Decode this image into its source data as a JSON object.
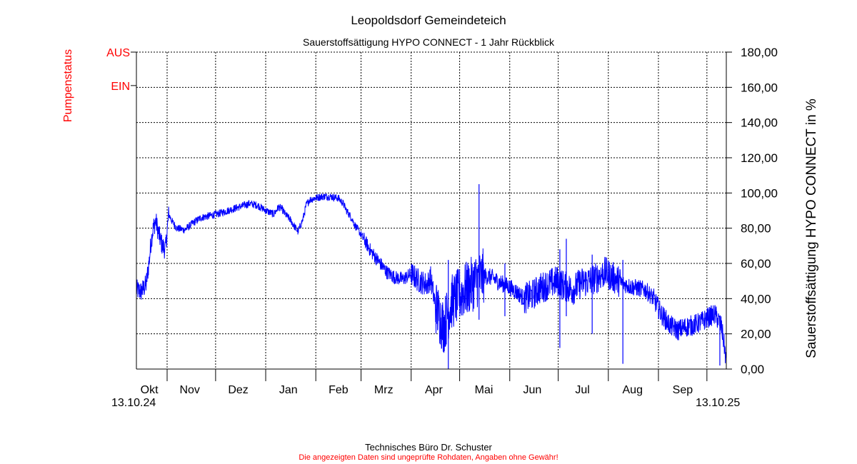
{
  "chart_data": {
    "type": "line",
    "title": "Leopoldsdorf Gemeindeteich",
    "subtitle": "Sauerstoffsättigung  HYPO CONNECT - 1 Jahr Rückblick",
    "ylabel": "Sauerstoffsättigung  HYPO CONNECT in %",
    "ylim": [
      0,
      180
    ],
    "yticks": [
      "0,00",
      "20,00",
      "40,00",
      "60,00",
      "80,00",
      "100,00",
      "120,00",
      "140,00",
      "160,00",
      "180,00"
    ],
    "xlim": [
      0,
      365
    ],
    "month_labels": [
      {
        "label": "Okt",
        "day": 8
      },
      {
        "label": "Nov",
        "day": 33
      },
      {
        "label": "Dez",
        "day": 63
      },
      {
        "label": "Jan",
        "day": 94
      },
      {
        "label": "Feb",
        "day": 125
      },
      {
        "label": "Mrz",
        "day": 153
      },
      {
        "label": "Apr",
        "day": 184
      },
      {
        "label": "Mai",
        "day": 215
      },
      {
        "label": "Jun",
        "day": 245
      },
      {
        "label": "Jul",
        "day": 276
      },
      {
        "label": "Aug",
        "day": 307
      },
      {
        "label": "Sep",
        "day": 338
      }
    ],
    "month_gridlines": [
      19,
      49,
      80,
      111,
      139,
      170,
      200,
      231,
      261,
      292,
      323,
      353
    ],
    "date_start": "13.10.24",
    "date_end": "13.10.25",
    "grid": true,
    "pump_axis": {
      "label": "Pumpenstatus",
      "off": "AUS",
      "on": "EIN",
      "off_value": 180,
      "on_value": 161
    },
    "series": [
      {
        "name": "Sauerstoffsättigung HYPO CONNECT",
        "color": "#0000ff",
        "days": [
          0,
          3,
          6,
          8,
          9,
          10,
          11,
          12,
          14,
          16,
          18,
          20,
          22,
          25,
          30,
          35,
          40,
          50,
          60,
          70,
          75,
          80,
          85,
          88,
          90,
          92,
          95,
          100,
          103,
          105,
          107,
          110,
          115,
          120,
          125,
          128,
          130,
          133,
          135,
          140,
          145,
          150,
          155,
          160,
          165,
          170,
          175,
          180,
          182,
          185,
          190,
          195,
          200,
          205,
          210,
          215,
          220,
          225,
          230,
          235,
          240,
          245,
          250,
          255,
          260,
          265,
          270,
          275,
          280,
          285,
          290,
          295,
          300,
          305,
          310,
          315,
          320,
          325,
          330,
          335,
          340,
          345,
          350,
          355,
          358,
          360,
          362,
          364,
          365
        ],
        "values": [
          45,
          44,
          48,
          62,
          72,
          78,
          82,
          84,
          76,
          70,
          68,
          88,
          84,
          80,
          79,
          83,
          86,
          88,
          91,
          94,
          93,
          90,
          88,
          92,
          91,
          88,
          85,
          78,
          85,
          93,
          96,
          97,
          98,
          98,
          97,
          94,
          90,
          86,
          82,
          75,
          67,
          61,
          55,
          52,
          51,
          54,
          50,
          48,
          52,
          36,
          24,
          38,
          42,
          46,
          50,
          53,
          52,
          49,
          47,
          44,
          40,
          42,
          46,
          48,
          50,
          47,
          45,
          49,
          50,
          52,
          55,
          52,
          49,
          47,
          46,
          45,
          40,
          31,
          25,
          22,
          24,
          25,
          27,
          30,
          31,
          28,
          24,
          12,
          3
        ],
        "spikes": [
          {
            "day": 193,
            "min": 0,
            "max": 62
          },
          {
            "day": 212,
            "min": 28,
            "max": 105
          },
          {
            "day": 228,
            "min": 30,
            "max": 60
          },
          {
            "day": 262,
            "min": 12,
            "max": 68
          },
          {
            "day": 266,
            "min": 30,
            "max": 74
          },
          {
            "day": 282,
            "min": 20,
            "max": 65
          },
          {
            "day": 301,
            "min": 3,
            "max": 62
          },
          {
            "day": 361,
            "min": 2,
            "max": 30
          }
        ]
      }
    ]
  },
  "footer": {
    "company": "Technisches Büro Dr. Schuster",
    "disclaimer": "Die angezeigten Daten sind ungeprüfte Rohdaten, Angaben ohne Gewähr!"
  }
}
